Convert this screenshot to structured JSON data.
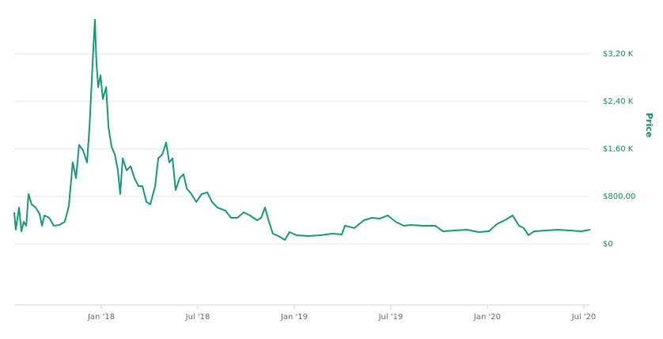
{
  "chart_data": {
    "type": "line",
    "y_label": "Price",
    "color": "#129b74",
    "x": [
      2017.549,
      2017.557,
      2017.574,
      2017.586,
      2017.598,
      2017.611,
      2017.623,
      2017.639,
      2017.66,
      2017.68,
      2017.693,
      2017.705,
      2017.73,
      2017.754,
      2017.783,
      2017.811,
      2017.832,
      2017.852,
      2017.869,
      2017.885,
      2017.906,
      2017.926,
      2017.939,
      2017.951,
      2017.959,
      2017.967,
      2017.975,
      2017.984,
      2017.996,
      2018.008,
      2018.025,
      2018.037,
      2018.053,
      2018.07,
      2018.086,
      2018.098,
      2018.111,
      2018.131,
      2018.152,
      2018.172,
      2018.193,
      2018.213,
      2018.234,
      2018.254,
      2018.279,
      2018.295,
      2018.316,
      2018.336,
      2018.352,
      2018.369,
      2018.385,
      2018.406,
      2018.426,
      2018.443,
      2018.467,
      2018.492,
      2018.52,
      2018.549,
      2018.574,
      2018.602,
      2018.643,
      2018.672,
      2018.705,
      2018.738,
      2018.77,
      2018.807,
      2018.828,
      2018.848,
      2018.869,
      2018.889,
      2018.918,
      2018.951,
      2018.975,
      2019.012,
      2019.074,
      2019.135,
      2019.197,
      2019.246,
      2019.262,
      2019.311,
      2019.361,
      2019.402,
      2019.443,
      2019.484,
      2019.525,
      2019.566,
      2019.607,
      2019.668,
      2019.73,
      2019.77,
      2019.832,
      2019.893,
      2019.955,
      2020.008,
      2020.049,
      2020.098,
      2020.131,
      2020.164,
      2020.189,
      2020.213,
      2020.242,
      2020.303,
      2020.365,
      2020.426,
      2020.488,
      2020.533
    ],
    "values": [
      533,
      240,
      613,
      213,
      373,
      307,
      840,
      667,
      613,
      507,
      307,
      480,
      440,
      307,
      320,
      373,
      640,
      1373,
      1107,
      1667,
      1573,
      1373,
      1973,
      2773,
      3307,
      3773,
      3040,
      2640,
      2840,
      2440,
      2640,
      1973,
      1640,
      1507,
      1240,
      840,
      1440,
      1240,
      1307,
      1107,
      973,
      973,
      707,
      667,
      973,
      1440,
      1507,
      1707,
      1373,
      1440,
      907,
      1107,
      1173,
      933,
      840,
      707,
      840,
      867,
      707,
      613,
      560,
      440,
      440,
      533,
      480,
      400,
      440,
      613,
      373,
      173,
      133,
      67,
      200,
      147,
      133,
      147,
      173,
      160,
      307,
      267,
      400,
      440,
      427,
      480,
      373,
      307,
      320,
      307,
      307,
      213,
      227,
      240,
      200,
      213,
      333,
      413,
      480,
      307,
      267,
      147,
      213,
      227,
      240,
      227,
      213,
      240
    ],
    "xlim": [
      2017.549,
      2020.533
    ],
    "xticks": [
      {
        "value": 2018,
        "label": "Jan '18"
      },
      {
        "value": 2018.5,
        "label": "Jul '18"
      },
      {
        "value": 2019,
        "label": "Jan '19"
      },
      {
        "value": 2019.5,
        "label": "Jul '19"
      },
      {
        "value": 2020,
        "label": "Jan '20"
      },
      {
        "value": 2020.5,
        "label": "Jul '20"
      }
    ],
    "ylim": [
      -1027,
      4040
    ],
    "yticks": [
      {
        "value": 0,
        "label": "$0"
      },
      {
        "value": 800,
        "label": "$800,00"
      },
      {
        "value": 1600,
        "label": "$1,60 K"
      },
      {
        "value": 2400,
        "label": "$2,40 K"
      },
      {
        "value": 3200,
        "label": "$3,20 K"
      }
    ],
    "grid": true
  }
}
